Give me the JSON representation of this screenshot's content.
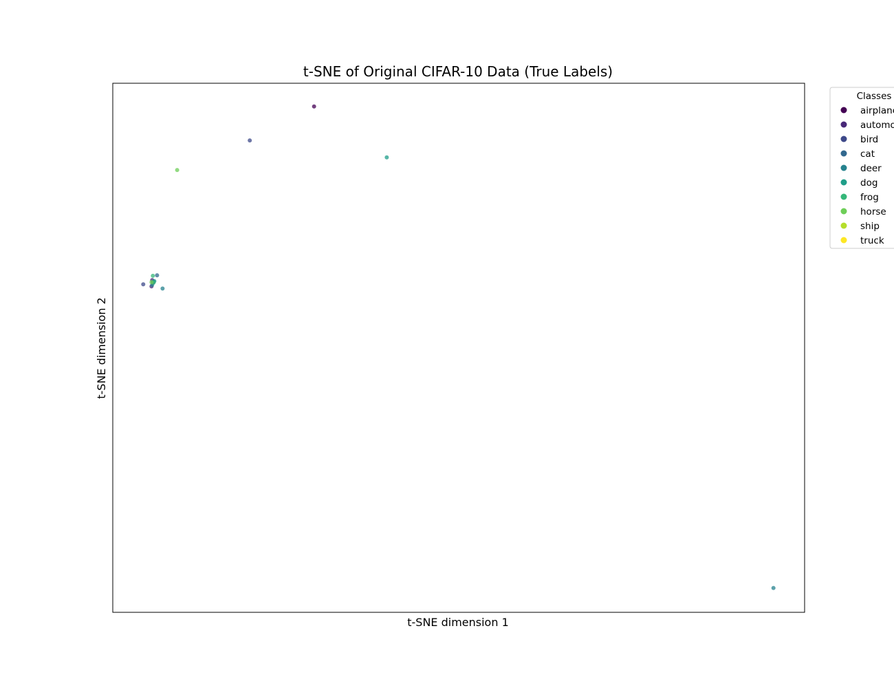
{
  "chart_data": {
    "type": "scatter",
    "title": "t-SNE of Original CIFAR-10 Data (True Labels)",
    "xlabel": "t-SNE dimension 1",
    "ylabel": "t-SNE dimension 2",
    "xlim": [
      0,
      100
    ],
    "ylim": [
      0,
      100
    ],
    "grid": false,
    "ticks_visible": false,
    "legend": {
      "title": "Classes",
      "placement": "outside-top-right",
      "entries": [
        "airplane",
        "automobile",
        "bird",
        "cat",
        "deer",
        "dog",
        "frog",
        "horse",
        "ship",
        "truck"
      ]
    },
    "class_colors": {
      "airplane": "#440154",
      "automobile": "#482878",
      "bird": "#3e4989",
      "cat": "#31688e",
      "deer": "#26828e",
      "dog": "#1f9e89",
      "frog": "#35b779",
      "horse": "#6ece58",
      "ship": "#b5de2b",
      "truck": "#fde725"
    },
    "series": [
      {
        "name": "airplane",
        "points": [
          [
            29.1,
            95.6
          ],
          [
            5.8,
            62.3
          ]
        ]
      },
      {
        "name": "automobile",
        "points": [
          [
            5.7,
            62.8
          ],
          [
            5.6,
            61.6
          ]
        ]
      },
      {
        "name": "bird",
        "points": [
          [
            19.8,
            89.2
          ],
          [
            4.4,
            62.0
          ]
        ]
      },
      {
        "name": "cat",
        "points": [
          [
            6.4,
            63.7
          ],
          [
            5.9,
            62.5
          ]
        ]
      },
      {
        "name": "deer",
        "points": [
          [
            95.5,
            4.6
          ],
          [
            7.2,
            61.2
          ],
          [
            5.7,
            61.9
          ]
        ]
      },
      {
        "name": "dog",
        "points": [
          [
            39.6,
            86.0
          ],
          [
            6.0,
            62.6
          ]
        ]
      },
      {
        "name": "frog",
        "points": [
          [
            5.8,
            63.6
          ],
          [
            5.9,
            62.3
          ]
        ]
      },
      {
        "name": "horse",
        "points": [
          [
            9.3,
            83.6
          ],
          [
            5.6,
            62.4
          ]
        ]
      },
      {
        "name": "ship",
        "points": []
      },
      {
        "name": "truck",
        "points": []
      }
    ]
  }
}
